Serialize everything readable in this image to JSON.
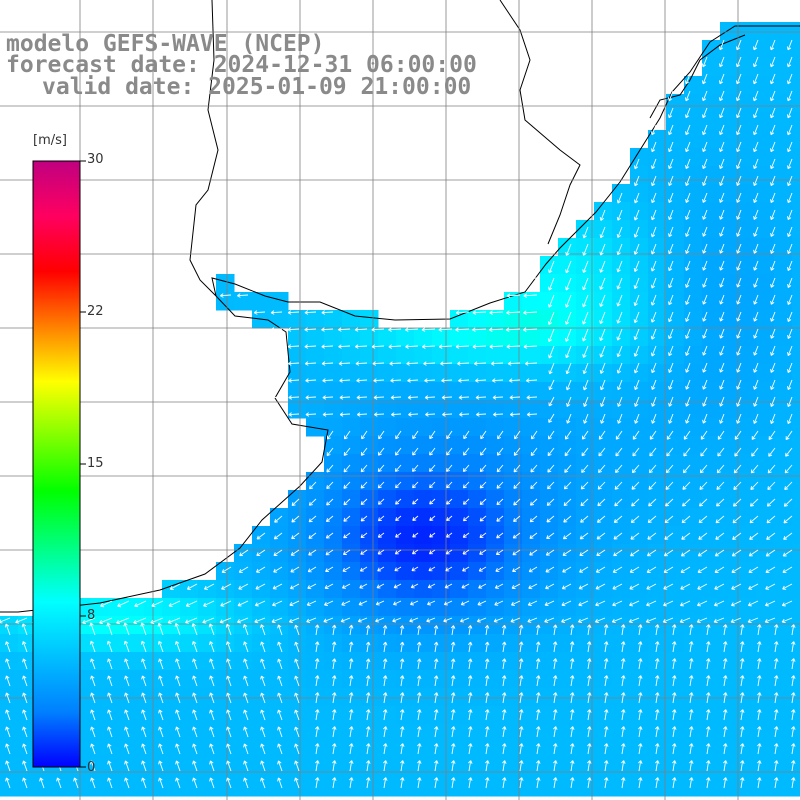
{
  "title": {
    "model": "modelo GEFS-WAVE (NCEP)",
    "forecast": "forecast date: 2024-12-31 06:00:00",
    "valid": "valid date: 2025-01-09 21:00:00"
  },
  "colorbar": {
    "unit": "[m/s]",
    "min": 0,
    "max": 30,
    "ticks": [
      "30",
      "22",
      "15",
      "8",
      "0"
    ],
    "colors": [
      "#0000ff",
      "#0080ff",
      "#00c0ff",
      "#00ffff",
      "#00ff80",
      "#00ff00",
      "#80ff00",
      "#ffff00",
      "#ff8000",
      "#ff0000",
      "#ff0060",
      "#c00080"
    ]
  },
  "map": {
    "land_color": "#ffffff",
    "coast_color": "#000000",
    "grid_color": "#7f7f7f",
    "arrow_color": "#ffffff",
    "grid": true,
    "description_fields": [
      "wind speed shaded",
      "wind direction arrows"
    ]
  }
}
